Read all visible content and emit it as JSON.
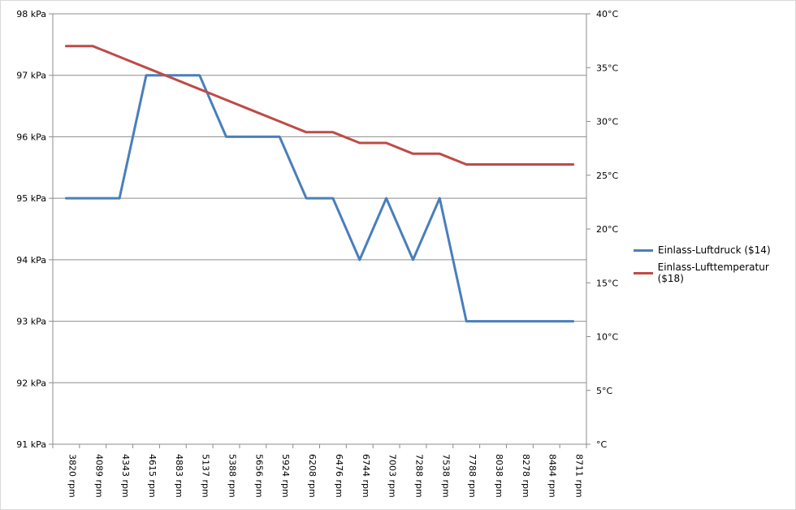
{
  "chart_data": {
    "type": "line",
    "categories": [
      "3820 rpm",
      "4089 rpm",
      "4343 rpm",
      "4615 rpm",
      "4883 rpm",
      "5137 rpm",
      "5388 rpm",
      "5656 rpm",
      "5924 rpm",
      "6208 rpm",
      "6476 rpm",
      "6744 rpm",
      "7003 rpm",
      "7288 rpm",
      "7538 rpm",
      "7788 rpm",
      "8038 rpm",
      "8278 rpm",
      "8484 rpm",
      "8711 rpm"
    ],
    "series": [
      {
        "name": "Einlass-Luftdruck ($14)",
        "axis": "left",
        "color": "#4a7ebb",
        "values": [
          95,
          95,
          95,
          97,
          97,
          97,
          96,
          96,
          96,
          95,
          95,
          94,
          95,
          94,
          95,
          93,
          93,
          93,
          93,
          93
        ]
      },
      {
        "name": "Einlass-Lufttemperatur ($18)",
        "axis": "right",
        "color": "#be4b48",
        "values": [
          37,
          37,
          36,
          35,
          34,
          33,
          32,
          31,
          30,
          29,
          29,
          28,
          28,
          27,
          27,
          26,
          26,
          26,
          26,
          26
        ]
      }
    ],
    "y_left": {
      "ylim": [
        91,
        98
      ],
      "ticks": [
        "91 kPa",
        "92 kPa",
        "93 kPa",
        "94 kPa",
        "95 kPa",
        "96 kPa",
        "97 kPa",
        "98 kPa"
      ]
    },
    "y_right": {
      "ylim": [
        0,
        40
      ],
      "ticks": [
        "°C",
        "5°C",
        "10°C",
        "15°C",
        "20°C",
        "25°C",
        "30°C",
        "35°C",
        "40°C"
      ]
    },
    "grid": true,
    "legend_position": "right"
  }
}
